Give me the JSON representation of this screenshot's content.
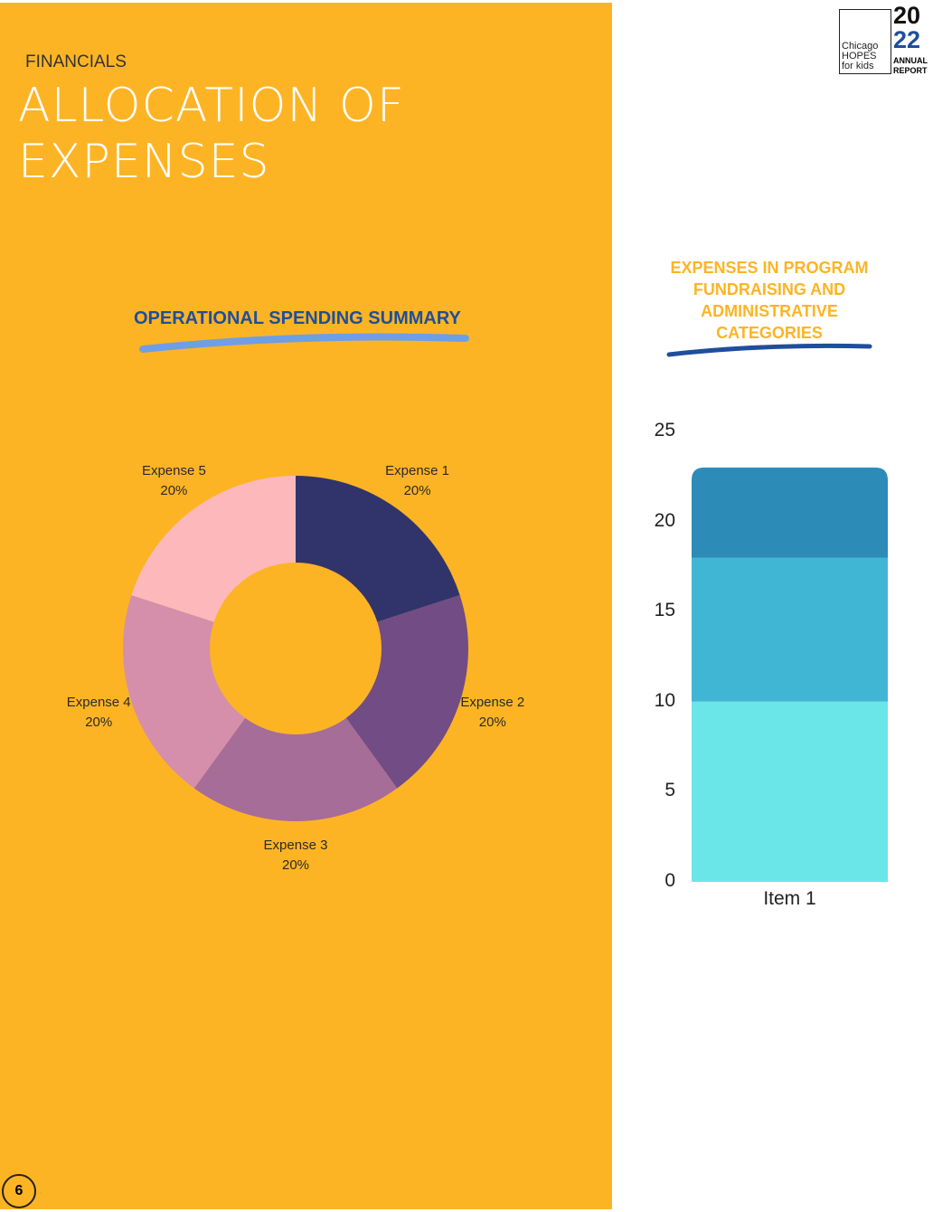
{
  "section": "FINANCIALS",
  "title": [
    "ALLOCATION OF",
    "EXPENSES"
  ],
  "logo": {
    "text": [
      "Chicago",
      "HOPES",
      "for kids"
    ],
    "year_top": "20",
    "year_bottom": "22",
    "sub": [
      "ANNUAL",
      "REPORT"
    ]
  },
  "page_number": "6",
  "chart_data": [
    {
      "type": "pie",
      "title": "OPERATIONAL SPENDING SUMMARY",
      "donut": true,
      "slices": [
        {
          "label": "Expense 1",
          "value": 20,
          "pct": "20%",
          "color": "#31346b"
        },
        {
          "label": "Expense 2",
          "value": 20,
          "pct": "20%",
          "color": "#714c85"
        },
        {
          "label": "Expense 3",
          "value": 20,
          "pct": "20%",
          "color": "#a66d98"
        },
        {
          "label": "Expense 4",
          "value": 20,
          "pct": "20%",
          "color": "#d58faa"
        },
        {
          "label": "Expense 5",
          "value": 20,
          "pct": "20%",
          "color": "#fdb8bc"
        }
      ]
    },
    {
      "type": "bar",
      "stacked": true,
      "title": "EXPENSES IN PROGRAM FUNDRAISING AND ADMINISTRATIVE CATEGORIES",
      "categories": [
        "Item 1"
      ],
      "ylim": [
        0,
        25
      ],
      "yticks": [
        "0",
        "5",
        "10",
        "15",
        "20",
        "25"
      ],
      "series": [
        {
          "values": [
            10
          ],
          "color": "#6ae6e8"
        },
        {
          "values": [
            8
          ],
          "color": "#41b6d4"
        },
        {
          "values": [
            5
          ],
          "color": "#2d8bb8"
        }
      ]
    }
  ]
}
